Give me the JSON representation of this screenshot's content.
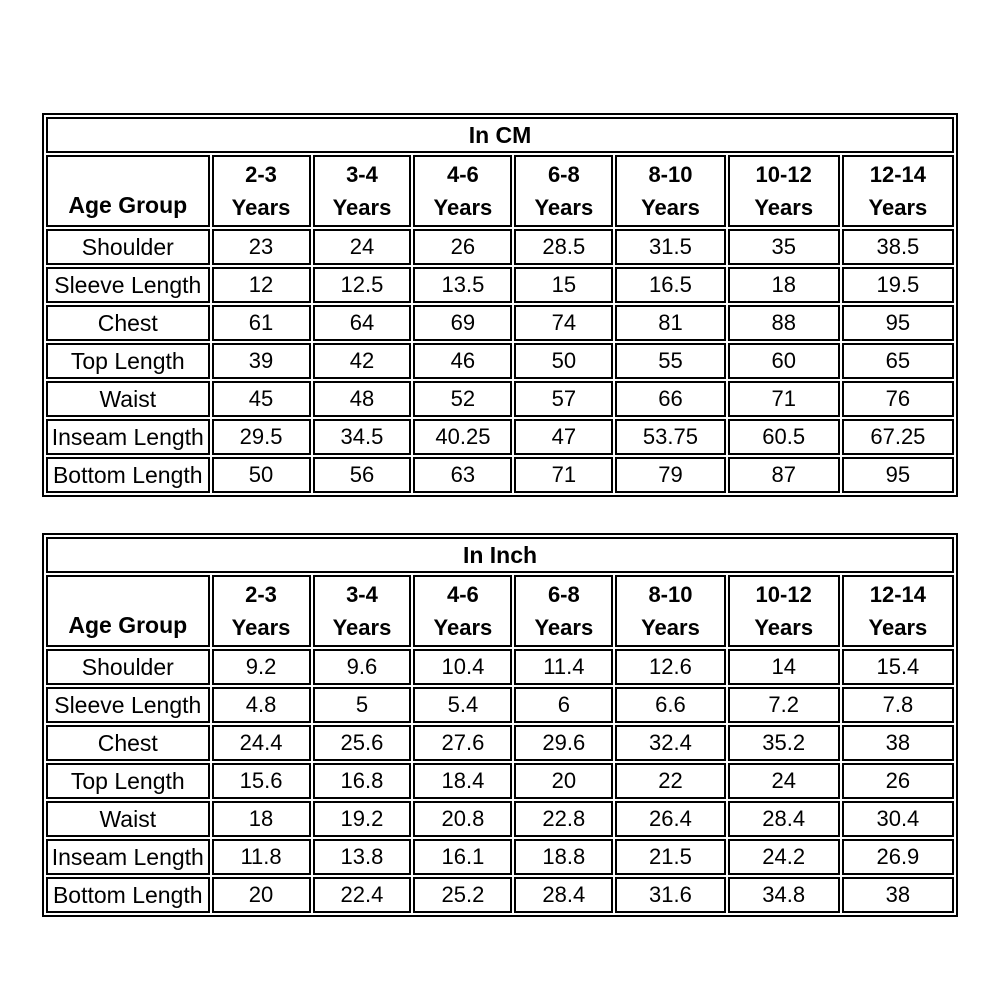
{
  "colors": {
    "background": "#ffffff",
    "border": "#000000",
    "text": "#000000"
  },
  "tables": [
    {
      "title": "In CM",
      "corner_label": "Age Group",
      "columns": [
        {
          "age_range": "2-3",
          "unit": "Years"
        },
        {
          "age_range": "3-4",
          "unit": "Years"
        },
        {
          "age_range": "4-6",
          "unit": "Years"
        },
        {
          "age_range": "6-8",
          "unit": "Years"
        },
        {
          "age_range": "8-10",
          "unit": "Years"
        },
        {
          "age_range": "10-12",
          "unit": "Years"
        },
        {
          "age_range": "12-14",
          "unit": "Years"
        }
      ],
      "rows": [
        {
          "label": "Shoulder",
          "values": [
            23,
            24,
            26,
            28.5,
            31.5,
            35,
            38.5
          ]
        },
        {
          "label": "Sleeve Length",
          "values": [
            12,
            12.5,
            13.5,
            15,
            16.5,
            18,
            19.5
          ]
        },
        {
          "label": "Chest",
          "values": [
            61,
            64,
            69,
            74,
            81,
            88,
            95
          ]
        },
        {
          "label": "Top Length",
          "values": [
            39,
            42,
            46,
            50,
            55,
            60,
            65
          ]
        },
        {
          "label": "Waist",
          "values": [
            45,
            48,
            52,
            57,
            66,
            71,
            76
          ]
        },
        {
          "label": "Inseam Length",
          "values": [
            29.5,
            34.5,
            40.25,
            47,
            53.75,
            60.5,
            67.25
          ]
        },
        {
          "label": "Bottom Length",
          "values": [
            50,
            56,
            63,
            71,
            79,
            87,
            95
          ]
        }
      ]
    },
    {
      "title": "In Inch",
      "corner_label": "Age Group",
      "columns": [
        {
          "age_range": "2-3",
          "unit": "Years"
        },
        {
          "age_range": "3-4",
          "unit": "Years"
        },
        {
          "age_range": "4-6",
          "unit": "Years"
        },
        {
          "age_range": "6-8",
          "unit": "Years"
        },
        {
          "age_range": "8-10",
          "unit": "Years"
        },
        {
          "age_range": "10-12",
          "unit": "Years"
        },
        {
          "age_range": "12-14",
          "unit": "Years"
        }
      ],
      "rows": [
        {
          "label": "Shoulder",
          "values": [
            9.2,
            9.6,
            10.4,
            11.4,
            12.6,
            14,
            15.4
          ]
        },
        {
          "label": "Sleeve Length",
          "values": [
            4.8,
            5,
            5.4,
            6,
            6.6,
            7.2,
            7.8
          ]
        },
        {
          "label": "Chest",
          "values": [
            24.4,
            25.6,
            27.6,
            29.6,
            32.4,
            35.2,
            38
          ]
        },
        {
          "label": "Top Length",
          "values": [
            15.6,
            16.8,
            18.4,
            20,
            22,
            24,
            26
          ]
        },
        {
          "label": "Waist",
          "values": [
            18,
            19.2,
            20.8,
            22.8,
            26.4,
            28.4,
            30.4
          ]
        },
        {
          "label": "Inseam Length",
          "values": [
            11.8,
            13.8,
            16.1,
            18.8,
            21.5,
            24.2,
            26.9
          ]
        },
        {
          "label": "Bottom Length",
          "values": [
            20,
            22.4,
            25.2,
            28.4,
            31.6,
            34.8,
            38
          ]
        }
      ]
    }
  ]
}
